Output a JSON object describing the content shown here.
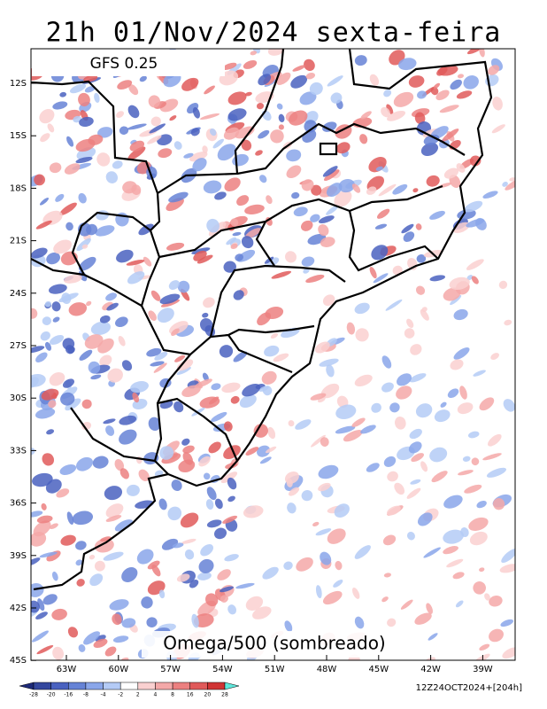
{
  "title": "21h 01/Nov/2024 sexta-feira",
  "model": "GFS 0.25",
  "field_label": "Omega/500 (sombreado)",
  "run_label": "12Z24OCT2024+[204h]",
  "lat_labels": [
    "12S",
    "15S",
    "18S",
    "21S",
    "24S",
    "27S",
    "30S",
    "33S",
    "36S",
    "39S",
    "42S",
    "45S"
  ],
  "lon_labels": [
    "63W",
    "60W",
    "57W",
    "54W",
    "51W",
    "48W",
    "45W",
    "42W",
    "39W"
  ],
  "colorbar": {
    "ticks": [
      -28,
      -20,
      -16,
      -8,
      -4,
      -2,
      2,
      4,
      8,
      16,
      20,
      28
    ],
    "colors": [
      "#1e2a78",
      "#34479e",
      "#4a62c0",
      "#6683d6",
      "#8aa6ea",
      "#b4cbf6",
      "#ffffff",
      "#fad0d0",
      "#f4a8a8",
      "#ec8080",
      "#e05a5a",
      "#d03434",
      "#5ee8dc"
    ]
  }
}
